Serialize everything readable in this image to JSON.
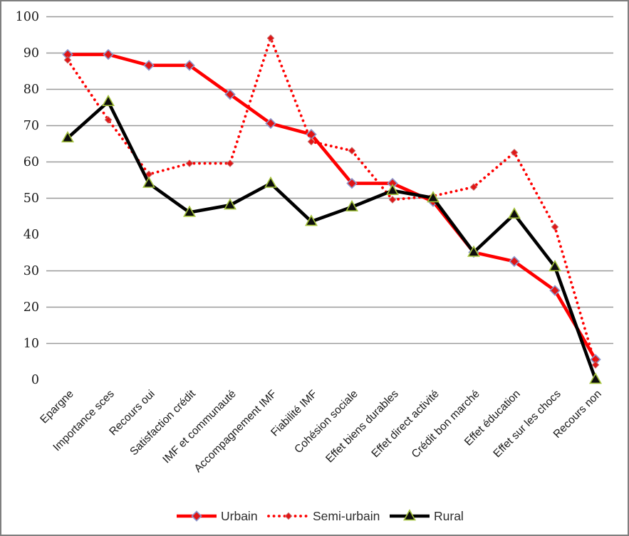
{
  "chart_data": {
    "type": "line",
    "title": "",
    "xlabel": "",
    "ylabel": "",
    "categories": [
      "Epargne",
      "Importance sces",
      "Recours oui",
      "Satisfaction crédit",
      "IMF et communauté",
      "Accompagnement IMF",
      "Fiabilité IMF",
      "Cohésion sociale",
      "Effet biens durables",
      "Effet direct activité",
      "Crédit bon marché",
      "Effet éducation",
      "Effet sur les chocs",
      "Recours non"
    ],
    "series": [
      {
        "name": "Urbain",
        "color": "#fe0000",
        "line_style": "solid",
        "marker": "diamond",
        "marker_fill": "#e01515",
        "marker_outline": "#8a96cc",
        "values": [
          89.5,
          89.5,
          86.5,
          86.5,
          78.5,
          70.5,
          67.5,
          54,
          54,
          49,
          35,
          32.5,
          24.5,
          5.5
        ]
      },
      {
        "name": "Semi-urbain",
        "color": "#fe0000",
        "line_style": "dotted",
        "marker": "diamond-small",
        "marker_fill": "#e01515",
        "marker_outline": "#c76a6a",
        "values": [
          88,
          71.5,
          56.5,
          59.5,
          59.5,
          94,
          65.5,
          63,
          49.5,
          50.5,
          53,
          62.5,
          42,
          4
        ]
      },
      {
        "name": "Rural",
        "color": "#000000",
        "line_style": "solid",
        "marker": "triangle",
        "marker_fill": "#0d0d0d",
        "marker_outline": "#a3c13a",
        "values": [
          66.5,
          76.5,
          54,
          46,
          48,
          54,
          43.5,
          47.5,
          52,
          50,
          35,
          45.5,
          31,
          0
        ]
      }
    ],
    "yticks": [
      0,
      10,
      20,
      30,
      40,
      50,
      60,
      70,
      80,
      90,
      100
    ],
    "gridline_values": [
      10,
      20,
      30,
      50,
      60,
      70,
      80,
      90,
      100
    ],
    "ylim": [
      0,
      100
    ],
    "grid": "horizontal-only",
    "legend_position": "bottom",
    "colors": {
      "gridline": "#9a9a9a",
      "axis_text": "#1a1a1a",
      "legend_text": "#2b2b2b",
      "frame_border": "#7f7f7f",
      "background": "#ffffff"
    }
  }
}
